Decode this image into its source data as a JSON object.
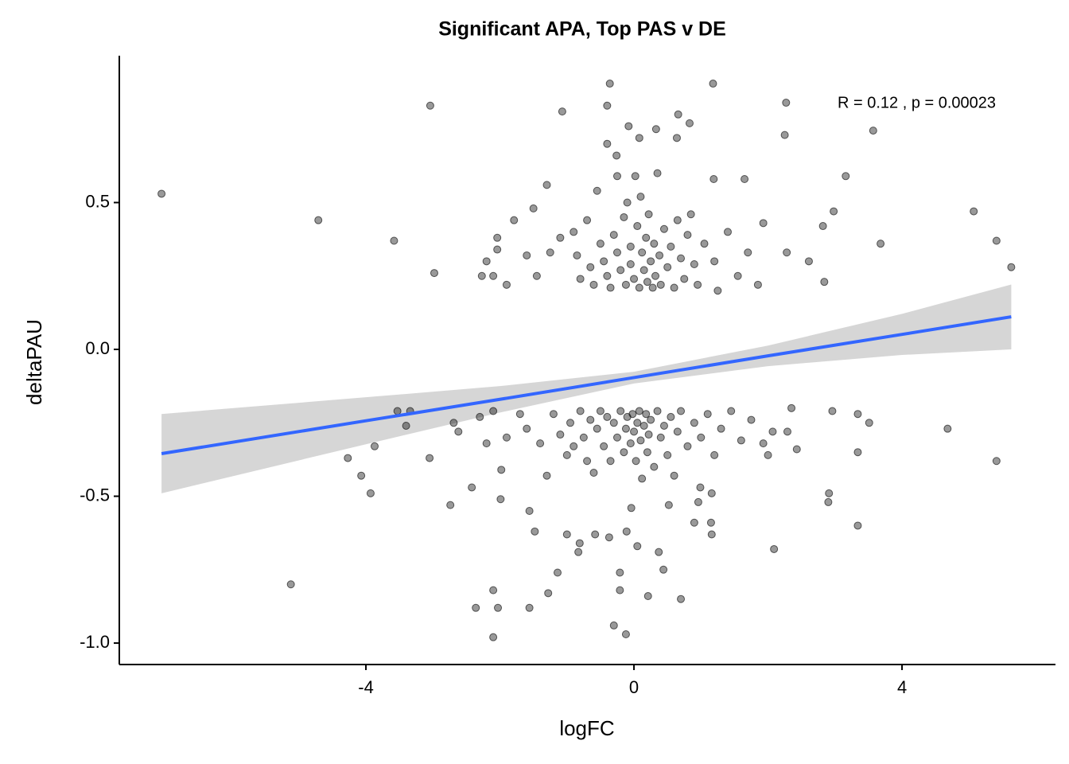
{
  "chart_data": {
    "type": "scatter",
    "title": "Significant APA, Top PAS v DE",
    "x_label": "logFC",
    "y_label": "deltaPAU",
    "annotation": "R = 0.12 , p = 0.00023",
    "point_color": "#000000",
    "point_alpha": 0.4,
    "x": [
      -7.05,
      -4.71,
      -3.58,
      -3.04,
      -2.98,
      -5.12,
      -4.27,
      -4.07,
      -3.93,
      -3.87,
      -3.53,
      -3.34,
      -3.4,
      -3.05,
      -2.74,
      -2.69,
      -2.62,
      -2.42,
      -2.36,
      -2.27,
      -2.2,
      -2.1,
      -2.1,
      -2.03,
      -1.99,
      -1.98,
      -2.04,
      -2.04,
      -1.79,
      -1.56,
      -1.56,
      -1.48,
      -1.28,
      -1.14,
      -1.07,
      -1.0,
      -0.83,
      -0.81,
      -0.58,
      -0.37,
      -0.36,
      -0.4,
      -0.08,
      0.33,
      0.66,
      0.83,
      0.64,
      -0.4,
      -0.26,
      0.08,
      1.18,
      2.27,
      2.25,
      3.57,
      3.16,
      1.65,
      1.19,
      5.07,
      5.41,
      5.63,
      3.68,
      2.98,
      2.82,
      2.84,
      2.61,
      2.28,
      1.93,
      4.68,
      5.41,
      3.34,
      3.51,
      3.34,
      3.34,
      2.91,
      2.9,
      2.96,
      2.09,
      2.07,
      2.43,
      2.0,
      1.93,
      2.29,
      2.35,
      1.16,
      1.15,
      1.16,
      0.96,
      0.9,
      0.7,
      0.21,
      -0.21,
      -0.21,
      -0.3,
      -0.12,
      0.37,
      0.44,
      0.05,
      -0.11,
      -0.04,
      0.52,
      0.99,
      -1.5,
      -1.3,
      -1.6,
      -1.45,
      -1.25,
      -1.1,
      -0.9,
      -0.85,
      -0.8,
      -0.7,
      -0.65,
      -0.6,
      -0.55,
      -0.5,
      -0.45,
      -0.4,
      -0.35,
      -0.3,
      -0.25,
      -0.25,
      -0.2,
      -0.15,
      -0.12,
      -0.1,
      -0.05,
      -0.05,
      0,
      0.02,
      0.05,
      0.08,
      0.1,
      0.12,
      0.15,
      0.18,
      0.2,
      0.22,
      0.25,
      0.28,
      0.3,
      0.32,
      0.35,
      0.38,
      0.4,
      0.45,
      0.5,
      0.55,
      0.6,
      0.65,
      0.7,
      0.75,
      0.8,
      0.85,
      0.9,
      0.95,
      1.05,
      1.2,
      1.25,
      1.4,
      1.55,
      1.7,
      1.85,
      -2.1,
      -1.9,
      -1.7,
      -1.6,
      -1.4,
      -1.3,
      -1.2,
      -1.1,
      -1.0,
      -0.95,
      -0.9,
      -0.8,
      -0.75,
      -0.7,
      -0.65,
      -0.6,
      -0.55,
      -0.5,
      -0.45,
      -0.4,
      -0.35,
      -0.3,
      -0.25,
      -0.2,
      -0.15,
      -0.12,
      -0.1,
      -0.05,
      -0.02,
      0,
      0.03,
      0.05,
      0.08,
      0.1,
      0.12,
      0.15,
      0.18,
      0.2,
      0.22,
      0.25,
      0.3,
      0.35,
      0.4,
      0.45,
      0.5,
      0.55,
      0.6,
      0.65,
      0.7,
      0.8,
      0.9,
      1.0,
      1.1,
      1.2,
      1.3,
      1.45,
      1.6,
      1.75,
      -2.3,
      -2.1,
      -1.9,
      -2.2
    ],
    "y": [
      0.53,
      0.44,
      0.37,
      0.83,
      0.26,
      -0.8,
      -0.37,
      -0.43,
      -0.49,
      -0.33,
      -0.21,
      -0.21,
      -0.26,
      -0.37,
      -0.53,
      -0.25,
      -0.28,
      -0.47,
      -0.88,
      0.25,
      0.3,
      -0.98,
      -0.82,
      -0.88,
      -0.51,
      -0.41,
      0.38,
      0.34,
      0.44,
      -0.55,
      -0.88,
      -0.62,
      -0.83,
      -0.76,
      0.81,
      -0.63,
      -0.69,
      -0.66,
      -0.63,
      -0.64,
      0.905,
      0.83,
      0.76,
      0.75,
      0.8,
      0.77,
      0.72,
      0.7,
      0.66,
      0.72,
      0.905,
      0.84,
      0.73,
      0.745,
      0.59,
      0.58,
      0.58,
      0.47,
      0.37,
      0.28,
      0.36,
      0.47,
      0.42,
      0.23,
      0.3,
      0.33,
      0.43,
      -0.27,
      -0.38,
      -0.22,
      -0.25,
      -0.35,
      -0.6,
      -0.49,
      -0.52,
      -0.21,
      -0.68,
      -0.28,
      -0.34,
      -0.36,
      -0.32,
      -0.28,
      -0.2,
      -0.49,
      -0.59,
      -0.63,
      -0.52,
      -0.59,
      -0.85,
      -0.84,
      -0.76,
      -0.82,
      -0.94,
      -0.97,
      -0.69,
      -0.75,
      -0.67,
      -0.62,
      -0.54,
      -0.53,
      -0.47,
      0.48,
      0.56,
      0.32,
      0.25,
      0.33,
      0.38,
      0.4,
      0.32,
      0.24,
      0.44,
      0.28,
      0.22,
      0.54,
      0.36,
      0.3,
      0.25,
      0.21,
      0.39,
      0.59,
      0.33,
      0.27,
      0.45,
      0.22,
      0.5,
      0.35,
      0.29,
      0.24,
      0.59,
      0.42,
      0.21,
      0.52,
      0.33,
      0.27,
      0.38,
      0.23,
      0.46,
      0.3,
      0.21,
      0.36,
      0.25,
      0.6,
      0.32,
      0.22,
      0.41,
      0.28,
      0.35,
      0.21,
      0.44,
      0.31,
      0.24,
      0.39,
      0.46,
      0.29,
      0.22,
      0.36,
      0.3,
      0.2,
      0.4,
      0.25,
      0.33,
      0.22,
      0.25,
      0.22,
      -0.22,
      -0.27,
      -0.32,
      -0.43,
      -0.22,
      -0.29,
      -0.36,
      -0.25,
      -0.33,
      -0.21,
      -0.3,
      -0.38,
      -0.24,
      -0.42,
      -0.27,
      -0.21,
      -0.33,
      -0.23,
      -0.38,
      -0.25,
      -0.3,
      -0.21,
      -0.35,
      -0.27,
      -0.23,
      -0.32,
      -0.22,
      -0.28,
      -0.38,
      -0.25,
      -0.21,
      -0.31,
      -0.44,
      -0.26,
      -0.22,
      -0.35,
      -0.29,
      -0.24,
      -0.4,
      -0.21,
      -0.3,
      -0.26,
      -0.36,
      -0.23,
      -0.43,
      -0.28,
      -0.21,
      -0.33,
      -0.25,
      -0.3,
      -0.22,
      -0.36,
      -0.27,
      -0.21,
      -0.31,
      -0.24,
      -0.23,
      -0.21,
      -0.3,
      -0.32
    ],
    "fit": {
      "color": "#3366ff",
      "band_color": "#d6d6d6",
      "x": [
        -7.05,
        -4,
        -2,
        0,
        2,
        4,
        5.63
      ],
      "y": [
        -0.355,
        -0.243,
        -0.17,
        -0.096,
        -0.022,
        0.051,
        0.111
      ],
      "lower": [
        -0.49,
        -0.323,
        -0.215,
        -0.116,
        -0.057,
        -0.019,
        0.0
      ],
      "upper": [
        -0.22,
        -0.163,
        -0.125,
        -0.076,
        0.013,
        0.121,
        0.221
      ]
    },
    "xlim": [
      -7.68,
      6.29
    ],
    "ylim": [
      -1.073,
      1.0
    ],
    "xticks": [
      -4,
      0,
      4
    ],
    "yticks": [
      {
        "value": -1.0,
        "label": "-1.0"
      },
      -0.5,
      {
        "value": 0.0,
        "label": "0.0"
      },
      0.5
    ]
  }
}
